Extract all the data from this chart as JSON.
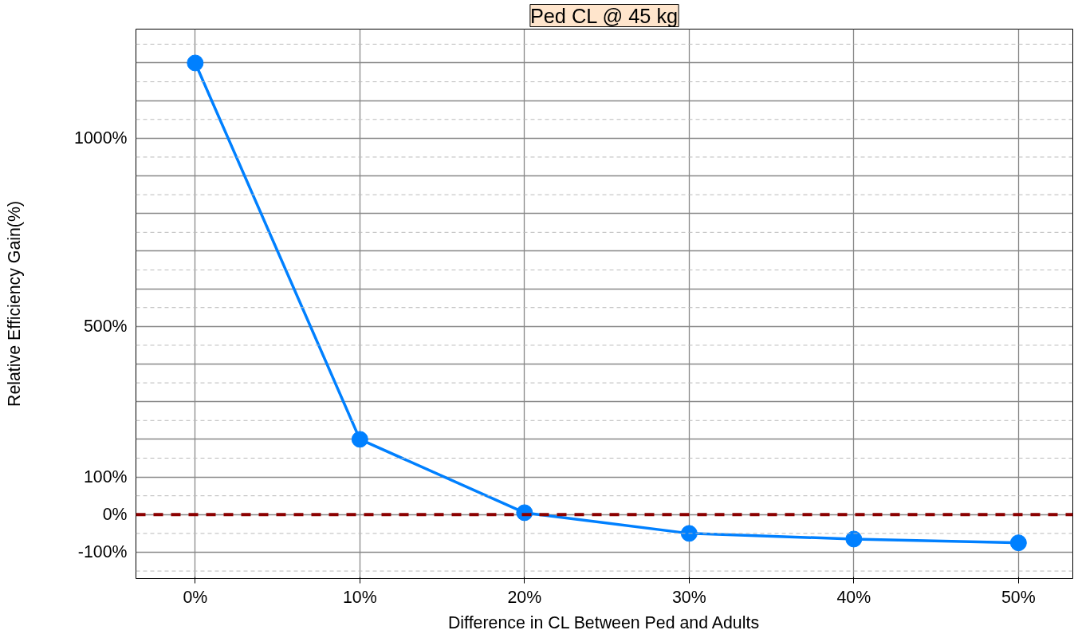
{
  "chart_data": {
    "type": "line",
    "title": "Ped CL @ 45 kg",
    "xlabel": "Difference in CL Between Ped and Adults",
    "ylabel": "Relative Efficiency Gain(%)",
    "x": [
      0,
      10,
      20,
      30,
      40,
      50
    ],
    "series": [
      {
        "color": "#0080ff",
        "values": [
          1200,
          200,
          5,
          -50,
          -65,
          -75
        ]
      }
    ],
    "marker": "circle",
    "line_style": "solid",
    "grid": true,
    "xlim": [
      -3.6,
      53.3
    ],
    "ylim": [
      -170,
      1290
    ],
    "xticks": [
      {
        "value": 0,
        "label": "0%"
      },
      {
        "value": 10,
        "label": "10%"
      },
      {
        "value": 20,
        "label": "20%"
      },
      {
        "value": 30,
        "label": "30%"
      },
      {
        "value": 40,
        "label": "40%"
      },
      {
        "value": 50,
        "label": "50%"
      }
    ],
    "yticks": [
      {
        "value": -100,
        "label": "-100%"
      },
      {
        "value": 0,
        "label": "0%"
      },
      {
        "value": 100,
        "label": "100%"
      },
      {
        "value": 200,
        "label": null
      },
      {
        "value": 300,
        "label": null
      },
      {
        "value": 400,
        "label": null
      },
      {
        "value": 500,
        "label": "500%"
      },
      {
        "value": 600,
        "label": null
      },
      {
        "value": 700,
        "label": null
      },
      {
        "value": 800,
        "label": null
      },
      {
        "value": 900,
        "label": null
      },
      {
        "value": 1000,
        "label": "1000%"
      },
      {
        "value": 1100,
        "label": null
      },
      {
        "value": 1200,
        "label": null
      }
    ],
    "ref_lines": [
      {
        "axis": "y",
        "value": 0,
        "color": "#8b0000",
        "line_style": "dashed"
      }
    ]
  }
}
